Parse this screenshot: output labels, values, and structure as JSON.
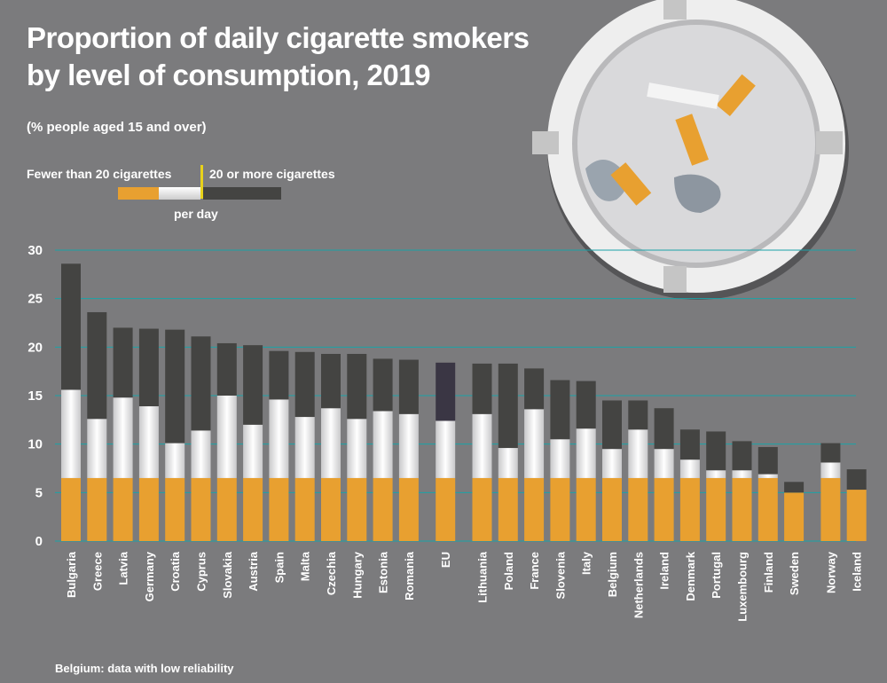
{
  "title_line1": "Proportion of daily cigarette smokers",
  "title_line2": "by level of consumption, 2019",
  "subtitle": "(% people aged 15 and over)",
  "legend": {
    "low": "Fewer than 20 cigarettes",
    "high": "20 or more cigarettes",
    "per_day": "per day"
  },
  "footnote": "Belgium: data with low reliability",
  "colors": {
    "background": "#7b7b7d",
    "grid": "#1aa3a8",
    "low_cigarette_body": "#e8e8ea",
    "filter": "#e8a030",
    "high_dark": "#444442",
    "eu_high": "#3a3644"
  },
  "chart_data": {
    "type": "bar",
    "stacked": true,
    "ylim": [
      0,
      30
    ],
    "yticks": [
      0,
      5,
      10,
      15,
      20,
      25,
      30
    ],
    "grid": true,
    "categories": [
      "Bulgaria",
      "Greece",
      "Latvia",
      "Germany",
      "Croatia",
      "Cyprus",
      "Slovakia",
      "Austria",
      "Spain",
      "Malta",
      "Czechia",
      "Hungary",
      "Estonia",
      "Romania",
      "EU",
      "Lithuania",
      "Poland",
      "France",
      "Slovenia",
      "Italy",
      "Belgium",
      "Netherlands",
      "Ireland",
      "Denmark",
      "Portugal",
      "Luxembourg",
      "Finland",
      "Sweden",
      "Norway",
      "Iceland"
    ],
    "series": [
      {
        "name": "Fewer than 20 cigarettes",
        "values": [
          15.6,
          12.6,
          14.8,
          13.9,
          10.1,
          11.4,
          15.0,
          12.0,
          14.6,
          12.8,
          13.7,
          12.6,
          13.4,
          13.1,
          12.4,
          13.1,
          9.6,
          13.6,
          10.5,
          11.6,
          9.5,
          11.5,
          9.5,
          8.4,
          7.3,
          7.3,
          6.9,
          5.0,
          8.1,
          5.3
        ]
      },
      {
        "name": "20 or more cigarettes",
        "values": [
          13.0,
          11.0,
          7.2,
          8.0,
          11.7,
          9.7,
          5.4,
          8.2,
          5.0,
          6.7,
          5.6,
          6.7,
          5.4,
          5.6,
          6.0,
          5.2,
          8.7,
          4.2,
          6.1,
          4.9,
          5.0,
          3.0,
          4.2,
          3.1,
          4.0,
          3.0,
          2.8,
          1.1,
          2.0,
          2.1
        ]
      }
    ]
  }
}
